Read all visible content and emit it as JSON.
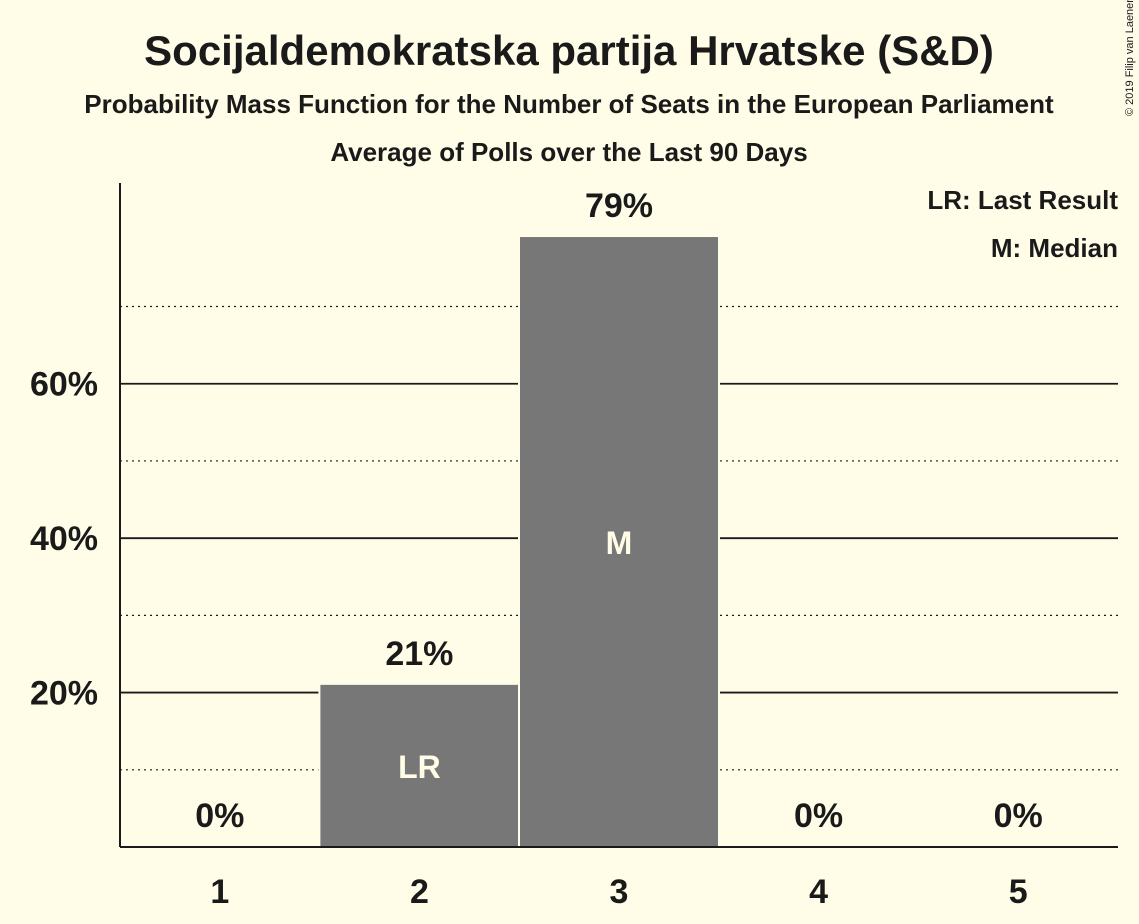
{
  "chart_data": {
    "type": "bar",
    "title": "Socijaldemokratska partija Hrvatske (S&D)",
    "subtitle": "Probability Mass Function for the Number of Seats in the European Parliament",
    "subtitle2": "Average of Polls over the Last 90 Days",
    "categories": [
      "1",
      "2",
      "3",
      "4",
      "5"
    ],
    "values": [
      0,
      21,
      79,
      0,
      0
    ],
    "value_labels": [
      "0%",
      "21%",
      "79%",
      "0%",
      "0%"
    ],
    "bar_annotations": [
      "",
      "LR",
      "M",
      "",
      ""
    ],
    "y_ticks": [
      {
        "value": 20,
        "label": "20%"
      },
      {
        "value": 40,
        "label": "40%"
      },
      {
        "value": 60,
        "label": "60%"
      }
    ],
    "y_minor_gridlines": [
      10,
      30,
      50,
      70
    ],
    "ylim": [
      0,
      86
    ],
    "grid": true,
    "legend": {
      "placement": "top-right",
      "entries": [
        "LR: Last Result",
        "M: Median"
      ]
    },
    "bar_color": "#777777",
    "background_color": "#fffde8",
    "copyright": "© 2019 Filip van Laenen"
  }
}
